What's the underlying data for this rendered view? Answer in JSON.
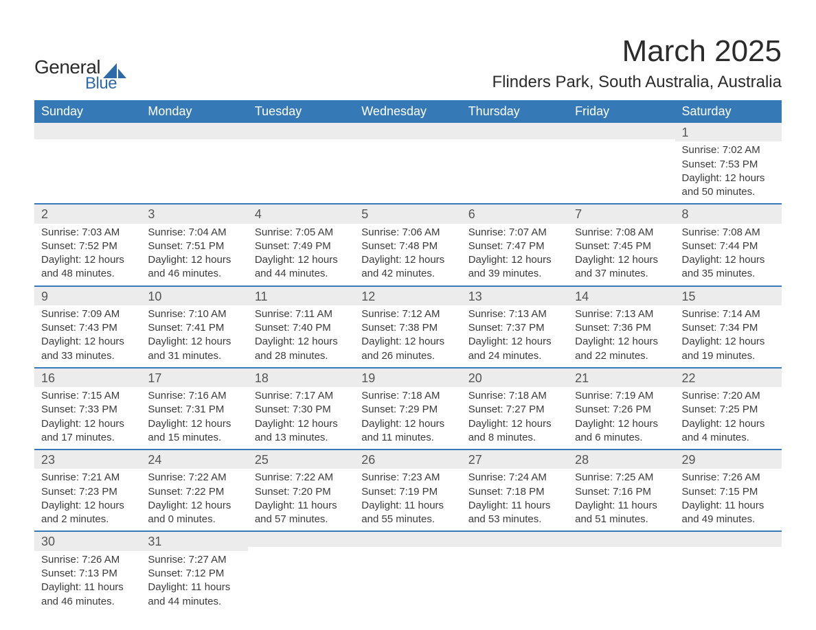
{
  "logo": {
    "text_general": "General",
    "text_blue": "Blue"
  },
  "title": "March 2025",
  "location": "Flinders Park, South Australia, Australia",
  "colors": {
    "header_bg": "#357ab7",
    "header_text": "#ffffff",
    "bar_bg": "#ececec",
    "rule": "#357ab7",
    "body_text": "#3a3a3a",
    "background": "#ffffff"
  },
  "typography": {
    "title_fontsize": 44,
    "location_fontsize": 24,
    "header_fontsize": 18,
    "daynum_fontsize": 18,
    "body_fontsize": 15,
    "font_family": "Arial"
  },
  "day_headers": [
    "Sunday",
    "Monday",
    "Tuesday",
    "Wednesday",
    "Thursday",
    "Friday",
    "Saturday"
  ],
  "weeks": [
    [
      null,
      null,
      null,
      null,
      null,
      null,
      {
        "n": "1",
        "sunrise": "Sunrise: 7:02 AM",
        "sunset": "Sunset: 7:53 PM",
        "d1": "Daylight: 12 hours",
        "d2": "and 50 minutes."
      }
    ],
    [
      {
        "n": "2",
        "sunrise": "Sunrise: 7:03 AM",
        "sunset": "Sunset: 7:52 PM",
        "d1": "Daylight: 12 hours",
        "d2": "and 48 minutes."
      },
      {
        "n": "3",
        "sunrise": "Sunrise: 7:04 AM",
        "sunset": "Sunset: 7:51 PM",
        "d1": "Daylight: 12 hours",
        "d2": "and 46 minutes."
      },
      {
        "n": "4",
        "sunrise": "Sunrise: 7:05 AM",
        "sunset": "Sunset: 7:49 PM",
        "d1": "Daylight: 12 hours",
        "d2": "and 44 minutes."
      },
      {
        "n": "5",
        "sunrise": "Sunrise: 7:06 AM",
        "sunset": "Sunset: 7:48 PM",
        "d1": "Daylight: 12 hours",
        "d2": "and 42 minutes."
      },
      {
        "n": "6",
        "sunrise": "Sunrise: 7:07 AM",
        "sunset": "Sunset: 7:47 PM",
        "d1": "Daylight: 12 hours",
        "d2": "and 39 minutes."
      },
      {
        "n": "7",
        "sunrise": "Sunrise: 7:08 AM",
        "sunset": "Sunset: 7:45 PM",
        "d1": "Daylight: 12 hours",
        "d2": "and 37 minutes."
      },
      {
        "n": "8",
        "sunrise": "Sunrise: 7:08 AM",
        "sunset": "Sunset: 7:44 PM",
        "d1": "Daylight: 12 hours",
        "d2": "and 35 minutes."
      }
    ],
    [
      {
        "n": "9",
        "sunrise": "Sunrise: 7:09 AM",
        "sunset": "Sunset: 7:43 PM",
        "d1": "Daylight: 12 hours",
        "d2": "and 33 minutes."
      },
      {
        "n": "10",
        "sunrise": "Sunrise: 7:10 AM",
        "sunset": "Sunset: 7:41 PM",
        "d1": "Daylight: 12 hours",
        "d2": "and 31 minutes."
      },
      {
        "n": "11",
        "sunrise": "Sunrise: 7:11 AM",
        "sunset": "Sunset: 7:40 PM",
        "d1": "Daylight: 12 hours",
        "d2": "and 28 minutes."
      },
      {
        "n": "12",
        "sunrise": "Sunrise: 7:12 AM",
        "sunset": "Sunset: 7:38 PM",
        "d1": "Daylight: 12 hours",
        "d2": "and 26 minutes."
      },
      {
        "n": "13",
        "sunrise": "Sunrise: 7:13 AM",
        "sunset": "Sunset: 7:37 PM",
        "d1": "Daylight: 12 hours",
        "d2": "and 24 minutes."
      },
      {
        "n": "14",
        "sunrise": "Sunrise: 7:13 AM",
        "sunset": "Sunset: 7:36 PM",
        "d1": "Daylight: 12 hours",
        "d2": "and 22 minutes."
      },
      {
        "n": "15",
        "sunrise": "Sunrise: 7:14 AM",
        "sunset": "Sunset: 7:34 PM",
        "d1": "Daylight: 12 hours",
        "d2": "and 19 minutes."
      }
    ],
    [
      {
        "n": "16",
        "sunrise": "Sunrise: 7:15 AM",
        "sunset": "Sunset: 7:33 PM",
        "d1": "Daylight: 12 hours",
        "d2": "and 17 minutes."
      },
      {
        "n": "17",
        "sunrise": "Sunrise: 7:16 AM",
        "sunset": "Sunset: 7:31 PM",
        "d1": "Daylight: 12 hours",
        "d2": "and 15 minutes."
      },
      {
        "n": "18",
        "sunrise": "Sunrise: 7:17 AM",
        "sunset": "Sunset: 7:30 PM",
        "d1": "Daylight: 12 hours",
        "d2": "and 13 minutes."
      },
      {
        "n": "19",
        "sunrise": "Sunrise: 7:18 AM",
        "sunset": "Sunset: 7:29 PM",
        "d1": "Daylight: 12 hours",
        "d2": "and 11 minutes."
      },
      {
        "n": "20",
        "sunrise": "Sunrise: 7:18 AM",
        "sunset": "Sunset: 7:27 PM",
        "d1": "Daylight: 12 hours",
        "d2": "and 8 minutes."
      },
      {
        "n": "21",
        "sunrise": "Sunrise: 7:19 AM",
        "sunset": "Sunset: 7:26 PM",
        "d1": "Daylight: 12 hours",
        "d2": "and 6 minutes."
      },
      {
        "n": "22",
        "sunrise": "Sunrise: 7:20 AM",
        "sunset": "Sunset: 7:25 PM",
        "d1": "Daylight: 12 hours",
        "d2": "and 4 minutes."
      }
    ],
    [
      {
        "n": "23",
        "sunrise": "Sunrise: 7:21 AM",
        "sunset": "Sunset: 7:23 PM",
        "d1": "Daylight: 12 hours",
        "d2": "and 2 minutes."
      },
      {
        "n": "24",
        "sunrise": "Sunrise: 7:22 AM",
        "sunset": "Sunset: 7:22 PM",
        "d1": "Daylight: 12 hours",
        "d2": "and 0 minutes."
      },
      {
        "n": "25",
        "sunrise": "Sunrise: 7:22 AM",
        "sunset": "Sunset: 7:20 PM",
        "d1": "Daylight: 11 hours",
        "d2": "and 57 minutes."
      },
      {
        "n": "26",
        "sunrise": "Sunrise: 7:23 AM",
        "sunset": "Sunset: 7:19 PM",
        "d1": "Daylight: 11 hours",
        "d2": "and 55 minutes."
      },
      {
        "n": "27",
        "sunrise": "Sunrise: 7:24 AM",
        "sunset": "Sunset: 7:18 PM",
        "d1": "Daylight: 11 hours",
        "d2": "and 53 minutes."
      },
      {
        "n": "28",
        "sunrise": "Sunrise: 7:25 AM",
        "sunset": "Sunset: 7:16 PM",
        "d1": "Daylight: 11 hours",
        "d2": "and 51 minutes."
      },
      {
        "n": "29",
        "sunrise": "Sunrise: 7:26 AM",
        "sunset": "Sunset: 7:15 PM",
        "d1": "Daylight: 11 hours",
        "d2": "and 49 minutes."
      }
    ],
    [
      {
        "n": "30",
        "sunrise": "Sunrise: 7:26 AM",
        "sunset": "Sunset: 7:13 PM",
        "d1": "Daylight: 11 hours",
        "d2": "and 46 minutes."
      },
      {
        "n": "31",
        "sunrise": "Sunrise: 7:27 AM",
        "sunset": "Sunset: 7:12 PM",
        "d1": "Daylight: 11 hours",
        "d2": "and 44 minutes."
      },
      null,
      null,
      null,
      null,
      null
    ]
  ]
}
